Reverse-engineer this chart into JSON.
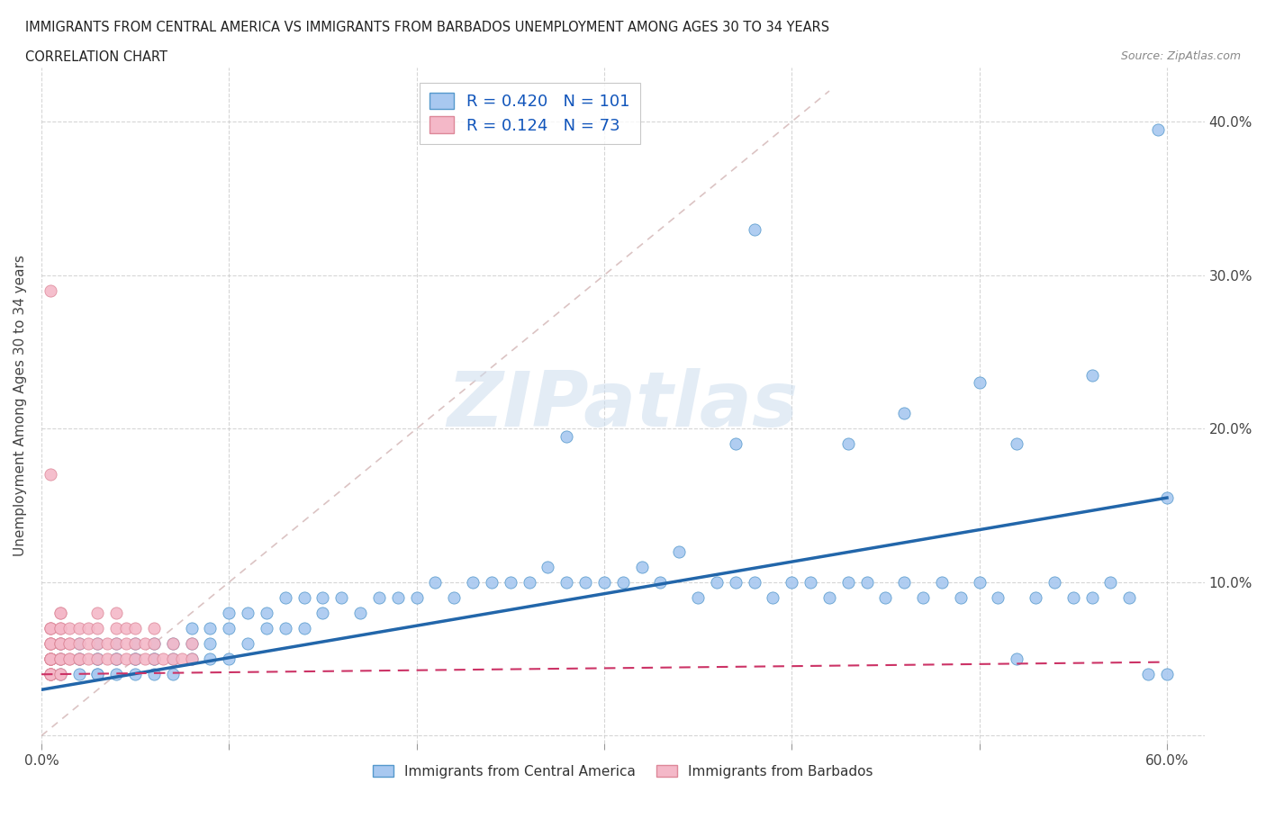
{
  "title_line1": "IMMIGRANTS FROM CENTRAL AMERICA VS IMMIGRANTS FROM BARBADOS UNEMPLOYMENT AMONG AGES 30 TO 34 YEARS",
  "title_line2": "CORRELATION CHART",
  "source_text": "Source: ZipAtlas.com",
  "ylabel": "Unemployment Among Ages 30 to 34 years",
  "xlim": [
    0.0,
    0.62
  ],
  "ylim": [
    -0.005,
    0.435
  ],
  "x_tick_positions": [
    0.0,
    0.1,
    0.2,
    0.3,
    0.4,
    0.5,
    0.6
  ],
  "x_tick_labels": [
    "0.0%",
    "",
    "",
    "",
    "",
    "",
    "60.0%"
  ],
  "y_tick_positions": [
    0.0,
    0.1,
    0.2,
    0.3,
    0.4
  ],
  "y_tick_labels_right": [
    "",
    "10.0%",
    "20.0%",
    "30.0%",
    "40.0%"
  ],
  "R_central": 0.42,
  "N_central": 101,
  "R_barbados": 0.124,
  "N_barbados": 73,
  "color_central": "#a8c8f0",
  "color_barbados": "#f4b8c8",
  "edge_color_central": "#5599cc",
  "edge_color_barbados": "#dd8899",
  "trend_color_central": "#2266aa",
  "trend_color_barbados": "#cc3366",
  "ref_line_color": "#ccaaaa",
  "watermark": "ZIPatlas",
  "trend_central_x0": 0.0,
  "trend_central_y0": 0.03,
  "trend_central_x1": 0.6,
  "trend_central_y1": 0.155,
  "trend_barbados_x0": 0.0,
  "trend_barbados_y0": 0.04,
  "trend_barbados_x1": 0.6,
  "trend_barbados_y1": 0.048,
  "central_x": [
    0.01,
    0.01,
    0.01,
    0.02,
    0.02,
    0.02,
    0.02,
    0.03,
    0.03,
    0.03,
    0.03,
    0.03,
    0.04,
    0.04,
    0.04,
    0.04,
    0.05,
    0.05,
    0.05,
    0.05,
    0.06,
    0.06,
    0.06,
    0.06,
    0.07,
    0.07,
    0.07,
    0.08,
    0.08,
    0.08,
    0.09,
    0.09,
    0.09,
    0.1,
    0.1,
    0.1,
    0.11,
    0.11,
    0.12,
    0.12,
    0.13,
    0.13,
    0.14,
    0.14,
    0.15,
    0.15,
    0.16,
    0.17,
    0.18,
    0.19,
    0.2,
    0.21,
    0.22,
    0.23,
    0.24,
    0.25,
    0.26,
    0.27,
    0.28,
    0.29,
    0.3,
    0.31,
    0.32,
    0.33,
    0.34,
    0.35,
    0.36,
    0.37,
    0.38,
    0.39,
    0.4,
    0.41,
    0.42,
    0.43,
    0.44,
    0.45,
    0.46,
    0.47,
    0.48,
    0.49,
    0.5,
    0.51,
    0.52,
    0.53,
    0.54,
    0.55,
    0.56,
    0.57,
    0.58,
    0.59,
    0.6,
    0.37,
    0.43,
    0.5,
    0.56,
    0.46,
    0.52,
    0.38,
    0.28,
    0.6,
    0.595
  ],
  "central_y": [
    0.05,
    0.04,
    0.06,
    0.05,
    0.04,
    0.06,
    0.05,
    0.05,
    0.04,
    0.06,
    0.05,
    0.04,
    0.05,
    0.06,
    0.04,
    0.05,
    0.05,
    0.04,
    0.06,
    0.05,
    0.05,
    0.04,
    0.06,
    0.05,
    0.05,
    0.06,
    0.04,
    0.05,
    0.06,
    0.07,
    0.05,
    0.06,
    0.07,
    0.05,
    0.07,
    0.08,
    0.06,
    0.08,
    0.07,
    0.08,
    0.07,
    0.09,
    0.07,
    0.09,
    0.08,
    0.09,
    0.09,
    0.08,
    0.09,
    0.09,
    0.09,
    0.1,
    0.09,
    0.1,
    0.1,
    0.1,
    0.1,
    0.11,
    0.1,
    0.1,
    0.1,
    0.1,
    0.11,
    0.1,
    0.12,
    0.09,
    0.1,
    0.1,
    0.1,
    0.09,
    0.1,
    0.1,
    0.09,
    0.1,
    0.1,
    0.09,
    0.1,
    0.09,
    0.1,
    0.09,
    0.1,
    0.09,
    0.05,
    0.09,
    0.1,
    0.09,
    0.09,
    0.1,
    0.09,
    0.04,
    0.04,
    0.19,
    0.19,
    0.23,
    0.235,
    0.21,
    0.19,
    0.33,
    0.195,
    0.155,
    0.395
  ],
  "barbados_x": [
    0.005,
    0.005,
    0.005,
    0.005,
    0.005,
    0.005,
    0.005,
    0.005,
    0.005,
    0.005,
    0.005,
    0.005,
    0.005,
    0.005,
    0.005,
    0.005,
    0.005,
    0.005,
    0.005,
    0.005,
    0.01,
    0.01,
    0.01,
    0.01,
    0.01,
    0.01,
    0.01,
    0.01,
    0.01,
    0.01,
    0.01,
    0.01,
    0.015,
    0.015,
    0.015,
    0.015,
    0.015,
    0.02,
    0.02,
    0.02,
    0.02,
    0.025,
    0.025,
    0.025,
    0.03,
    0.03,
    0.03,
    0.03,
    0.035,
    0.035,
    0.04,
    0.04,
    0.04,
    0.04,
    0.045,
    0.045,
    0.045,
    0.05,
    0.05,
    0.05,
    0.055,
    0.055,
    0.06,
    0.06,
    0.06,
    0.065,
    0.07,
    0.07,
    0.075,
    0.08,
    0.08,
    0.005,
    0.005
  ],
  "barbados_y": [
    0.04,
    0.04,
    0.04,
    0.04,
    0.04,
    0.04,
    0.05,
    0.05,
    0.05,
    0.05,
    0.05,
    0.05,
    0.05,
    0.06,
    0.06,
    0.06,
    0.06,
    0.07,
    0.07,
    0.07,
    0.04,
    0.04,
    0.05,
    0.05,
    0.05,
    0.06,
    0.06,
    0.06,
    0.07,
    0.07,
    0.08,
    0.08,
    0.05,
    0.05,
    0.06,
    0.06,
    0.07,
    0.05,
    0.05,
    0.06,
    0.07,
    0.05,
    0.06,
    0.07,
    0.05,
    0.06,
    0.07,
    0.08,
    0.05,
    0.06,
    0.05,
    0.06,
    0.07,
    0.08,
    0.05,
    0.06,
    0.07,
    0.05,
    0.06,
    0.07,
    0.05,
    0.06,
    0.05,
    0.06,
    0.07,
    0.05,
    0.05,
    0.06,
    0.05,
    0.05,
    0.06,
    0.17,
    0.29
  ]
}
